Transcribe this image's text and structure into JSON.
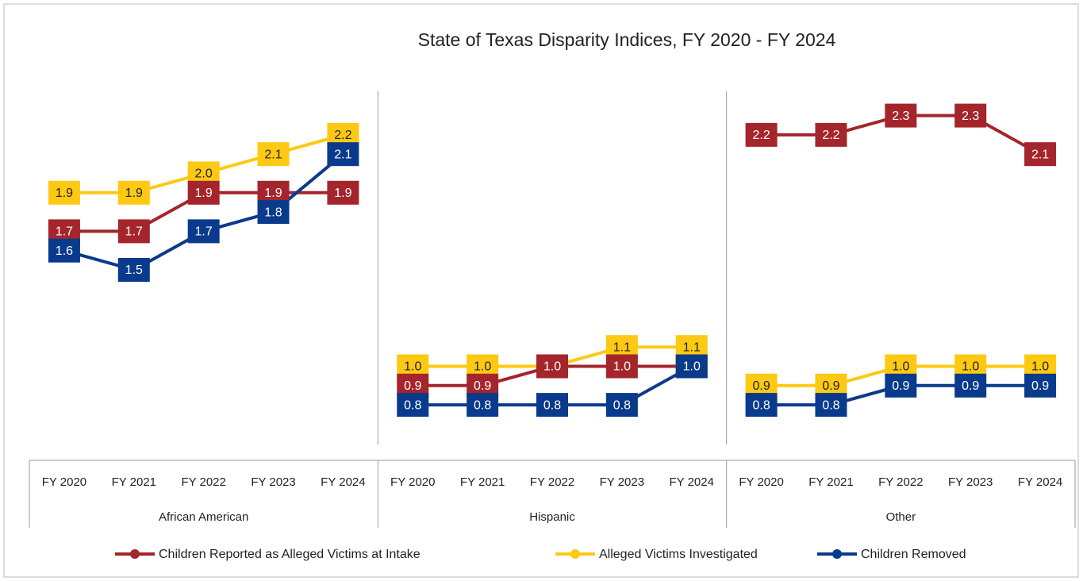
{
  "chart_data": {
    "type": "line",
    "title": "State of Texas Disparity Indices, FY 2020 - FY 2024",
    "categories": [
      "FY 2020",
      "FY 2021",
      "FY 2022",
      "FY 2023",
      "FY 2024",
      "FY 2020",
      "FY 2021",
      "FY 2022",
      "FY 2023",
      "FY 2024",
      "FY 2020",
      "FY 2021",
      "FY 2022",
      "FY 2023",
      "FY 2024"
    ],
    "groups": [
      "African American",
      "Hispanic",
      "Other"
    ],
    "ylim": [
      0.5,
      2.5
    ],
    "series": [
      {
        "name": "Children Reported as Alleged Victims at Intake",
        "color": "#a4252b",
        "values": [
          1.7,
          1.7,
          1.9,
          1.9,
          1.9,
          0.9,
          0.9,
          1.0,
          1.0,
          1.0,
          2.2,
          2.2,
          2.3,
          2.3,
          2.1
        ],
        "value_labels": [
          "1.7",
          "1.7",
          "1.9",
          "1.9",
          "1.9",
          "0.9",
          "0.9",
          "1.0",
          "1.0",
          "1.0",
          "2.2",
          "2.2",
          "2.3",
          "2.3",
          "2.1"
        ]
      },
      {
        "name": "Alleged Victims Investigated",
        "color": "#fdc913",
        "values": [
          1.9,
          1.9,
          2.0,
          2.1,
          2.2,
          1.0,
          1.0,
          1.0,
          1.1,
          1.1,
          0.9,
          0.9,
          1.0,
          1.0,
          1.0
        ],
        "value_labels": [
          "1.9",
          "1.9",
          "2.0",
          "2.1",
          "2.2",
          "1.0",
          "1.0",
          "1.0",
          "1.1",
          "1.1",
          "0.9",
          "0.9",
          "1.0",
          "1.0",
          "1.0"
        ]
      },
      {
        "name": "Children Removed",
        "color": "#0a3a8c",
        "values": [
          1.6,
          1.5,
          1.7,
          1.8,
          2.1,
          0.8,
          0.8,
          0.8,
          0.8,
          1.0,
          0.8,
          0.8,
          0.9,
          0.9,
          0.9
        ],
        "value_labels": [
          "1.6",
          "1.5",
          "1.7",
          "1.8",
          "2.1",
          "0.8",
          "0.8",
          "0.8",
          "0.8",
          "1.0",
          "0.8",
          "0.8",
          "0.9",
          "0.9",
          "0.9"
        ]
      }
    ]
  }
}
